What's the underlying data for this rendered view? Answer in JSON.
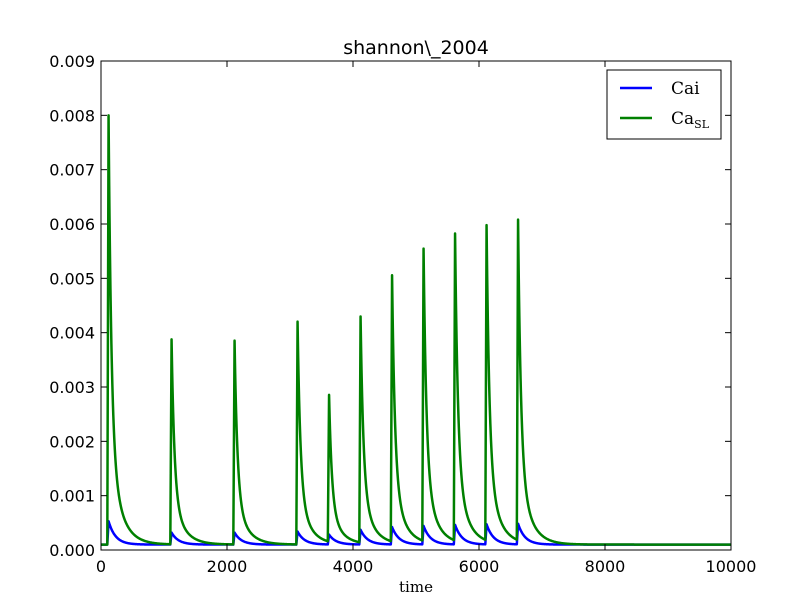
{
  "chart_data": {
    "type": "line",
    "title": "shannon\\_2004",
    "xlabel": "time",
    "ylabel": "",
    "xlim": [
      0,
      10000
    ],
    "ylim": [
      0,
      0.009
    ],
    "x_ticks": [
      0,
      2000,
      4000,
      6000,
      8000,
      10000
    ],
    "x_tick_labels": [
      "0",
      "2000",
      "4000",
      "6000",
      "8000",
      "10000"
    ],
    "y_ticks": [
      0,
      0.001,
      0.002,
      0.003,
      0.004,
      0.005,
      0.006,
      0.007,
      0.008,
      0.009
    ],
    "y_tick_labels": [
      "0.000",
      "0.001",
      "0.002",
      "0.003",
      "0.004",
      "0.005",
      "0.006",
      "0.007",
      "0.008",
      "0.009"
    ],
    "grid": false,
    "legend_position": "top-right",
    "baseline": 0.0001,
    "pulse_times": [
      100,
      1100,
      2100,
      3100,
      3600,
      4100,
      4600,
      5100,
      5600,
      6100,
      6600
    ],
    "series": [
      {
        "name": "Cai",
        "color": "#0000ff",
        "peaks": [
          0.00053,
          0.00032,
          0.00032,
          0.00034,
          0.00028,
          0.00037,
          0.00042,
          0.00044,
          0.00046,
          0.00047,
          0.00048
        ]
      },
      {
        "name": "Ca",
        "name_subscript": "SL",
        "color": "#008000",
        "peaks": [
          0.008,
          0.00387,
          0.00385,
          0.0042,
          0.0028,
          0.00426,
          0.005,
          0.00548,
          0.00575,
          0.0059,
          0.006
        ]
      }
    ]
  }
}
